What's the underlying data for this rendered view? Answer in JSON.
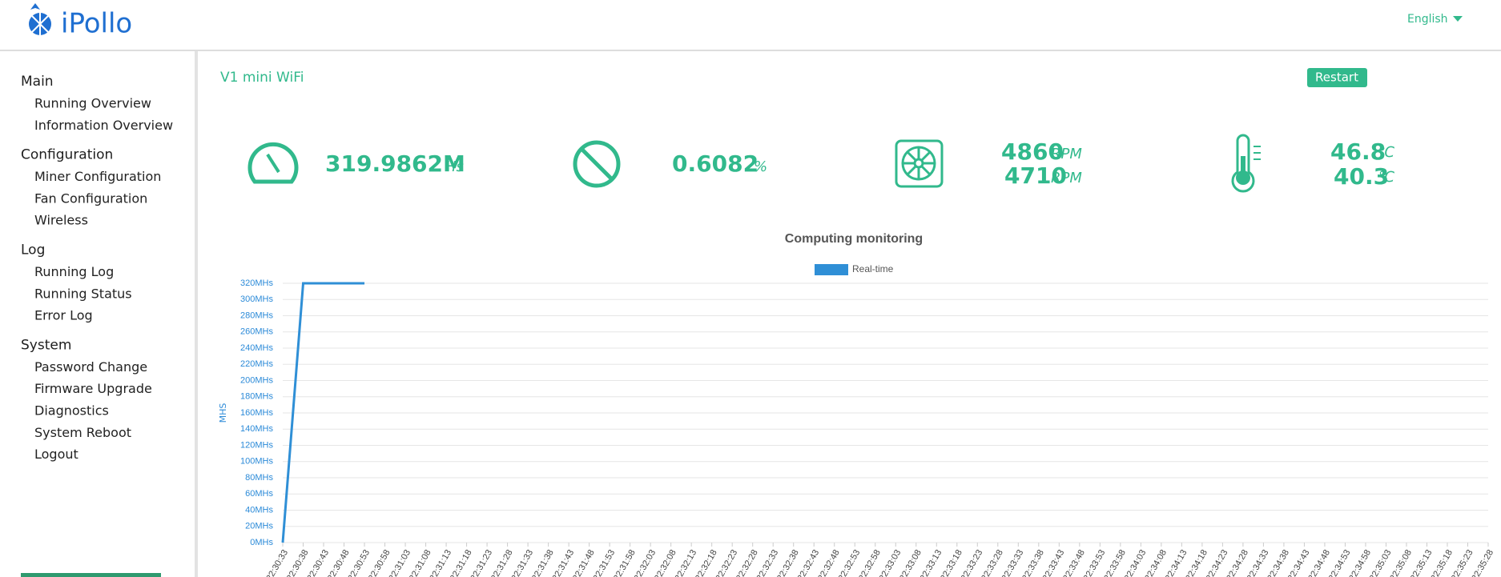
{
  "header": {
    "logo": "iPollo",
    "language": "English"
  },
  "sidebar": {
    "groups": [
      {
        "title": "Main",
        "items": [
          "Running Overview",
          "Information Overview"
        ]
      },
      {
        "title": "Configuration",
        "items": [
          "Miner Configuration",
          "Fan Configuration",
          "Wireless"
        ]
      },
      {
        "title": "Log",
        "items": [
          "Running Log",
          "Running Status",
          "Error Log"
        ]
      },
      {
        "title": "System",
        "items": [
          "Password Change",
          "Firmware Upgrade",
          "Diagnostics",
          "System Reboot",
          "Logout"
        ]
      }
    ]
  },
  "main": {
    "title": "V1 mini WiFi",
    "button": "Restart",
    "hashrate": {
      "value": "319.9862M",
      "unit": "Hs"
    },
    "reject": {
      "value": "0.6082",
      "unit": "%"
    },
    "fans": [
      {
        "value": "4860",
        "unit": "RPM"
      },
      {
        "value": "4710",
        "unit": "RPM"
      }
    ],
    "temps": [
      {
        "value": "46.8",
        "unit": "℃"
      },
      {
        "value": "40.3",
        "unit": "℃"
      }
    ]
  },
  "chart_data": {
    "type": "line",
    "title": "Computing monitoring",
    "y_label": "MHS",
    "grid": true,
    "categories": [
      "22:30:33",
      "22:30:38",
      "22:30:43",
      "22:30:48",
      "22:30:53",
      "22:30:58",
      "22:31:03",
      "22:31:08",
      "22:31:13",
      "22:31:18",
      "22:31:23",
      "22:31:28",
      "22:31:33",
      "22:31:38",
      "22:31:43",
      "22:31:48",
      "22:31:53",
      "22:31:58",
      "22:32:03",
      "22:32:08",
      "22:32:13",
      "22:32:18",
      "22:32:23",
      "22:32:28",
      "22:32:33",
      "22:32:38",
      "22:32:43",
      "22:32:48",
      "22:32:53",
      "22:32:58",
      "22:33:03",
      "22:33:08",
      "22:33:13",
      "22:33:18",
      "22:33:23",
      "22:33:28",
      "22:33:33",
      "22:33:38",
      "22:33:43",
      "22:33:48",
      "22:33:53",
      "22:33:58",
      "22:34:03",
      "22:34:08",
      "22:34:13",
      "22:34:18",
      "22:34:23",
      "22:34:28",
      "22:34:33",
      "22:34:38",
      "22:34:43",
      "22:34:48",
      "22:34:53",
      "22:34:58",
      "22:35:03",
      "22:35:08",
      "22:35:13",
      "22:35:18",
      "22:35:23",
      "22:35:28"
    ],
    "series": [
      {
        "name": "Real-time",
        "color": "#2f8fd6",
        "values": [
          0,
          320,
          320,
          320,
          320,
          null,
          null,
          null,
          null,
          null,
          null,
          null,
          null,
          null,
          null,
          null,
          null,
          null,
          null,
          null,
          null,
          null,
          null,
          null,
          null,
          null,
          null,
          null,
          null,
          null,
          null,
          null,
          null,
          null,
          null,
          null,
          null,
          null,
          null,
          null,
          null,
          null,
          null,
          null,
          null,
          null,
          null,
          null,
          null,
          null,
          null,
          null,
          null,
          null,
          null,
          null,
          null,
          null,
          null,
          null
        ]
      }
    ],
    "ylim": [
      0,
      320
    ],
    "yticks": [
      {
        "value": 0,
        "label": "0MHs"
      },
      {
        "value": 20,
        "label": "20MHs"
      },
      {
        "value": 40,
        "label": "40MHs"
      },
      {
        "value": 60,
        "label": "60MHs"
      },
      {
        "value": 80,
        "label": "80MHs"
      },
      {
        "value": 100,
        "label": "100MHs"
      },
      {
        "value": 120,
        "label": "120MHs"
      },
      {
        "value": 140,
        "label": "140MHs"
      },
      {
        "value": 160,
        "label": "160MHs"
      },
      {
        "value": 180,
        "label": "180MHs"
      },
      {
        "value": 200,
        "label": "200MHs"
      },
      {
        "value": 220,
        "label": "220MHs"
      },
      {
        "value": 240,
        "label": "240MHs"
      },
      {
        "value": 260,
        "label": "260MHs"
      },
      {
        "value": 280,
        "label": "280MHs"
      },
      {
        "value": 300,
        "label": "300MHs"
      },
      {
        "value": 320,
        "label": "320MHs"
      }
    ]
  }
}
